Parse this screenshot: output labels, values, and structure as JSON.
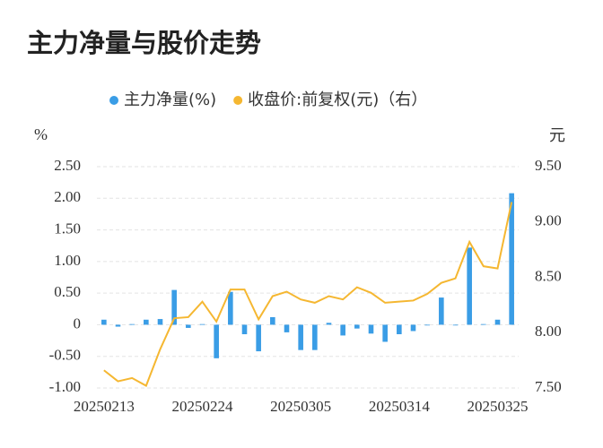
{
  "chart_data": {
    "type": "bar-line",
    "title": "主力净量与股价走势",
    "y_label": "%",
    "y2_label": "元",
    "categories": [
      "20250213",
      null,
      null,
      null,
      null,
      null,
      null,
      "20250224",
      null,
      null,
      null,
      null,
      null,
      null,
      "20250305",
      null,
      null,
      null,
      null,
      null,
      null,
      "20250314",
      null,
      null,
      null,
      null,
      null,
      null,
      "20250325",
      null
    ],
    "series": [
      {
        "name": "主力净量(%)",
        "type": "bar",
        "color": "#3a9de6",
        "values": [
          0.08,
          -0.03,
          0.01,
          0.08,
          0.09,
          0.55,
          -0.05,
          0.01,
          -0.53,
          0.52,
          -0.15,
          -0.42,
          0.12,
          -0.12,
          -0.4,
          -0.4,
          0.03,
          -0.17,
          -0.06,
          -0.14,
          -0.27,
          -0.15,
          -0.1,
          -0.01,
          0.43,
          0.0,
          1.22,
          0.01,
          0.08,
          2.08
        ]
      },
      {
        "name": "收盘价:前复权(元)（右）",
        "type": "line",
        "axis": "y2",
        "color": "#f5b731",
        "values": [
          7.66,
          7.56,
          7.59,
          7.52,
          7.85,
          8.13,
          8.14,
          8.28,
          8.1,
          8.39,
          8.39,
          8.12,
          8.33,
          8.37,
          8.3,
          8.27,
          8.33,
          8.3,
          8.41,
          8.36,
          8.27,
          8.28,
          8.29,
          8.35,
          8.45,
          8.49,
          8.82,
          8.6,
          8.58,
          9.18
        ]
      }
    ],
    "ylim": [
      -1.0,
      2.5
    ],
    "yticks": [
      {
        "value": 2.5,
        "label": "2.50"
      },
      {
        "value": 2.0,
        "label": "2.00"
      },
      {
        "value": 1.5,
        "label": "1.50"
      },
      {
        "value": 1.0,
        "label": "1.00"
      },
      {
        "value": 0.5,
        "label": "0.50"
      },
      0,
      {
        "value": -0.5,
        "label": "-0.50"
      },
      {
        "value": -1.0,
        "label": "-1.00"
      }
    ],
    "y2lim": [
      7.5,
      9.5
    ],
    "y2ticks": [
      {
        "value": 9.5,
        "label": "9.50"
      },
      {
        "value": 9.0,
        "label": "9.00"
      },
      {
        "value": 8.5,
        "label": "8.50"
      },
      {
        "value": 8.0,
        "label": "8.00"
      },
      {
        "value": 7.5,
        "label": "7.50"
      }
    ],
    "grid": true,
    "legend": "top"
  }
}
